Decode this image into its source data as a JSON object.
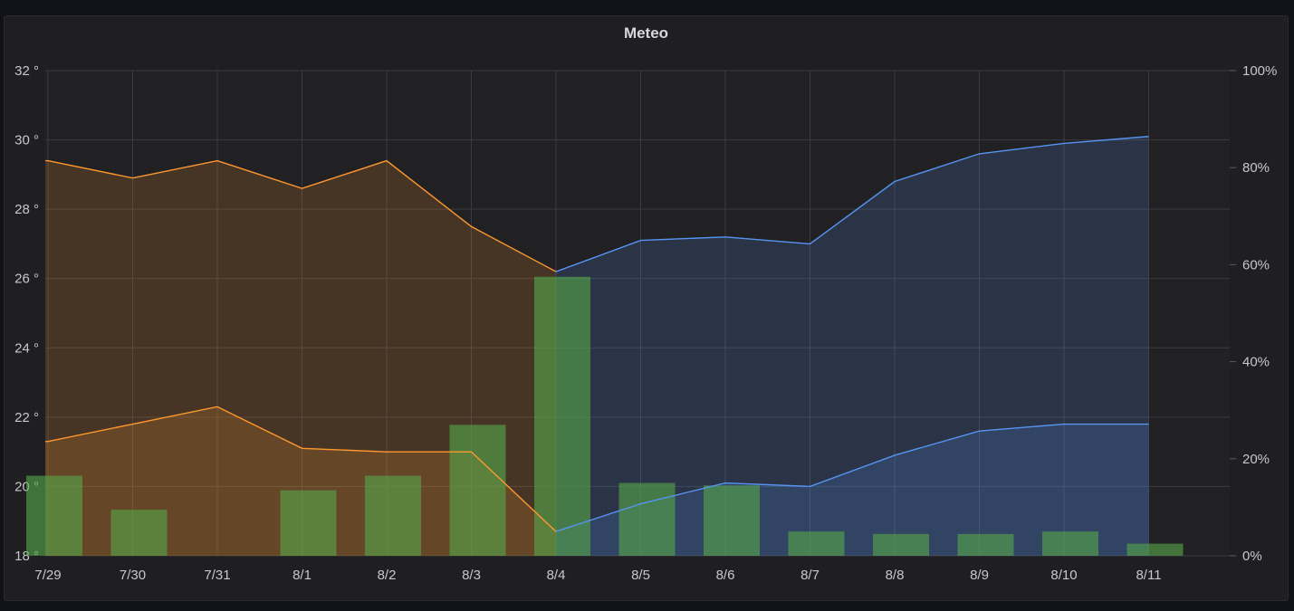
{
  "panel": {
    "title": "Meteo"
  },
  "colors": {
    "temp_line": "#ff9830",
    "temp_fill": "rgba(255,152,48,0.17)",
    "humidity_line": "#5794f2",
    "humidity_fill": "rgba(87,148,242,0.17)",
    "bars": "rgba(86,166,75,0.62)",
    "grid": "#3a3b40",
    "panel_bg": "#1f1f22"
  },
  "chart_data": {
    "type": "line",
    "title": "Meteo",
    "categories": [
      "7/29",
      "7/30",
      "7/31",
      "8/1",
      "8/2",
      "8/3",
      "8/4",
      "8/5",
      "8/6",
      "8/7",
      "8/8",
      "8/9",
      "8/10",
      "8/11"
    ],
    "y_left": {
      "ylim": [
        18,
        32
      ],
      "ticks": [
        "18 °",
        "20 °",
        "22 °",
        "24 °",
        "26 °",
        "28 °",
        "30 °",
        "32 °"
      ]
    },
    "y_right": {
      "ylim": [
        0,
        100
      ],
      "ticks": [
        "0%",
        "20%",
        "40%",
        "60%",
        "80%",
        "100%"
      ]
    },
    "grid": true,
    "series": [
      {
        "kind": "line",
        "axis": "left",
        "color": "orange",
        "x": [
          "7/29",
          "7/29",
          "7/30",
          "7/31",
          "8/1",
          "8/2",
          "8/3",
          "8/4"
        ],
        "values": [
          29.4,
          29.4,
          28.9,
          29.4,
          28.6,
          29.4,
          27.5,
          26.2
        ]
      },
      {
        "kind": "line",
        "axis": "left",
        "color": "orange",
        "x": [
          "7/29",
          "7/29",
          "7/30",
          "7/31",
          "8/1",
          "8/2",
          "8/3",
          "8/4"
        ],
        "values": [
          21.3,
          21.3,
          21.8,
          22.3,
          21.1,
          21.0,
          21.0,
          18.7
        ]
      },
      {
        "kind": "line",
        "axis": "left",
        "color": "blue",
        "x": [
          "8/4",
          "8/5",
          "8/6",
          "8/7",
          "8/8",
          "8/9",
          "8/10",
          "8/11"
        ],
        "values": [
          26.2,
          27.1,
          27.2,
          27.0,
          28.8,
          29.6,
          29.9,
          30.1
        ]
      },
      {
        "kind": "line",
        "axis": "left",
        "color": "blue",
        "x": [
          "8/4",
          "8/5",
          "8/6",
          "8/7",
          "8/8",
          "8/9",
          "8/10",
          "8/11"
        ],
        "values": [
          18.7,
          19.5,
          20.1,
          20.0,
          20.9,
          21.6,
          21.8,
          21.8
        ]
      },
      {
        "kind": "bar",
        "axis": "right",
        "color": "green",
        "x": [
          "7/29",
          "7/30",
          "7/31",
          "8/1",
          "8/2",
          "8/3",
          "8/4",
          "8/5",
          "8/6",
          "8/7",
          "8/8",
          "8/9",
          "8/10",
          "8/11"
        ],
        "values": [
          16.5,
          9.5,
          0,
          13.5,
          16.5,
          27,
          57.5,
          15,
          14.5,
          5,
          4.5,
          4.5,
          5,
          2.5
        ]
      }
    ]
  }
}
